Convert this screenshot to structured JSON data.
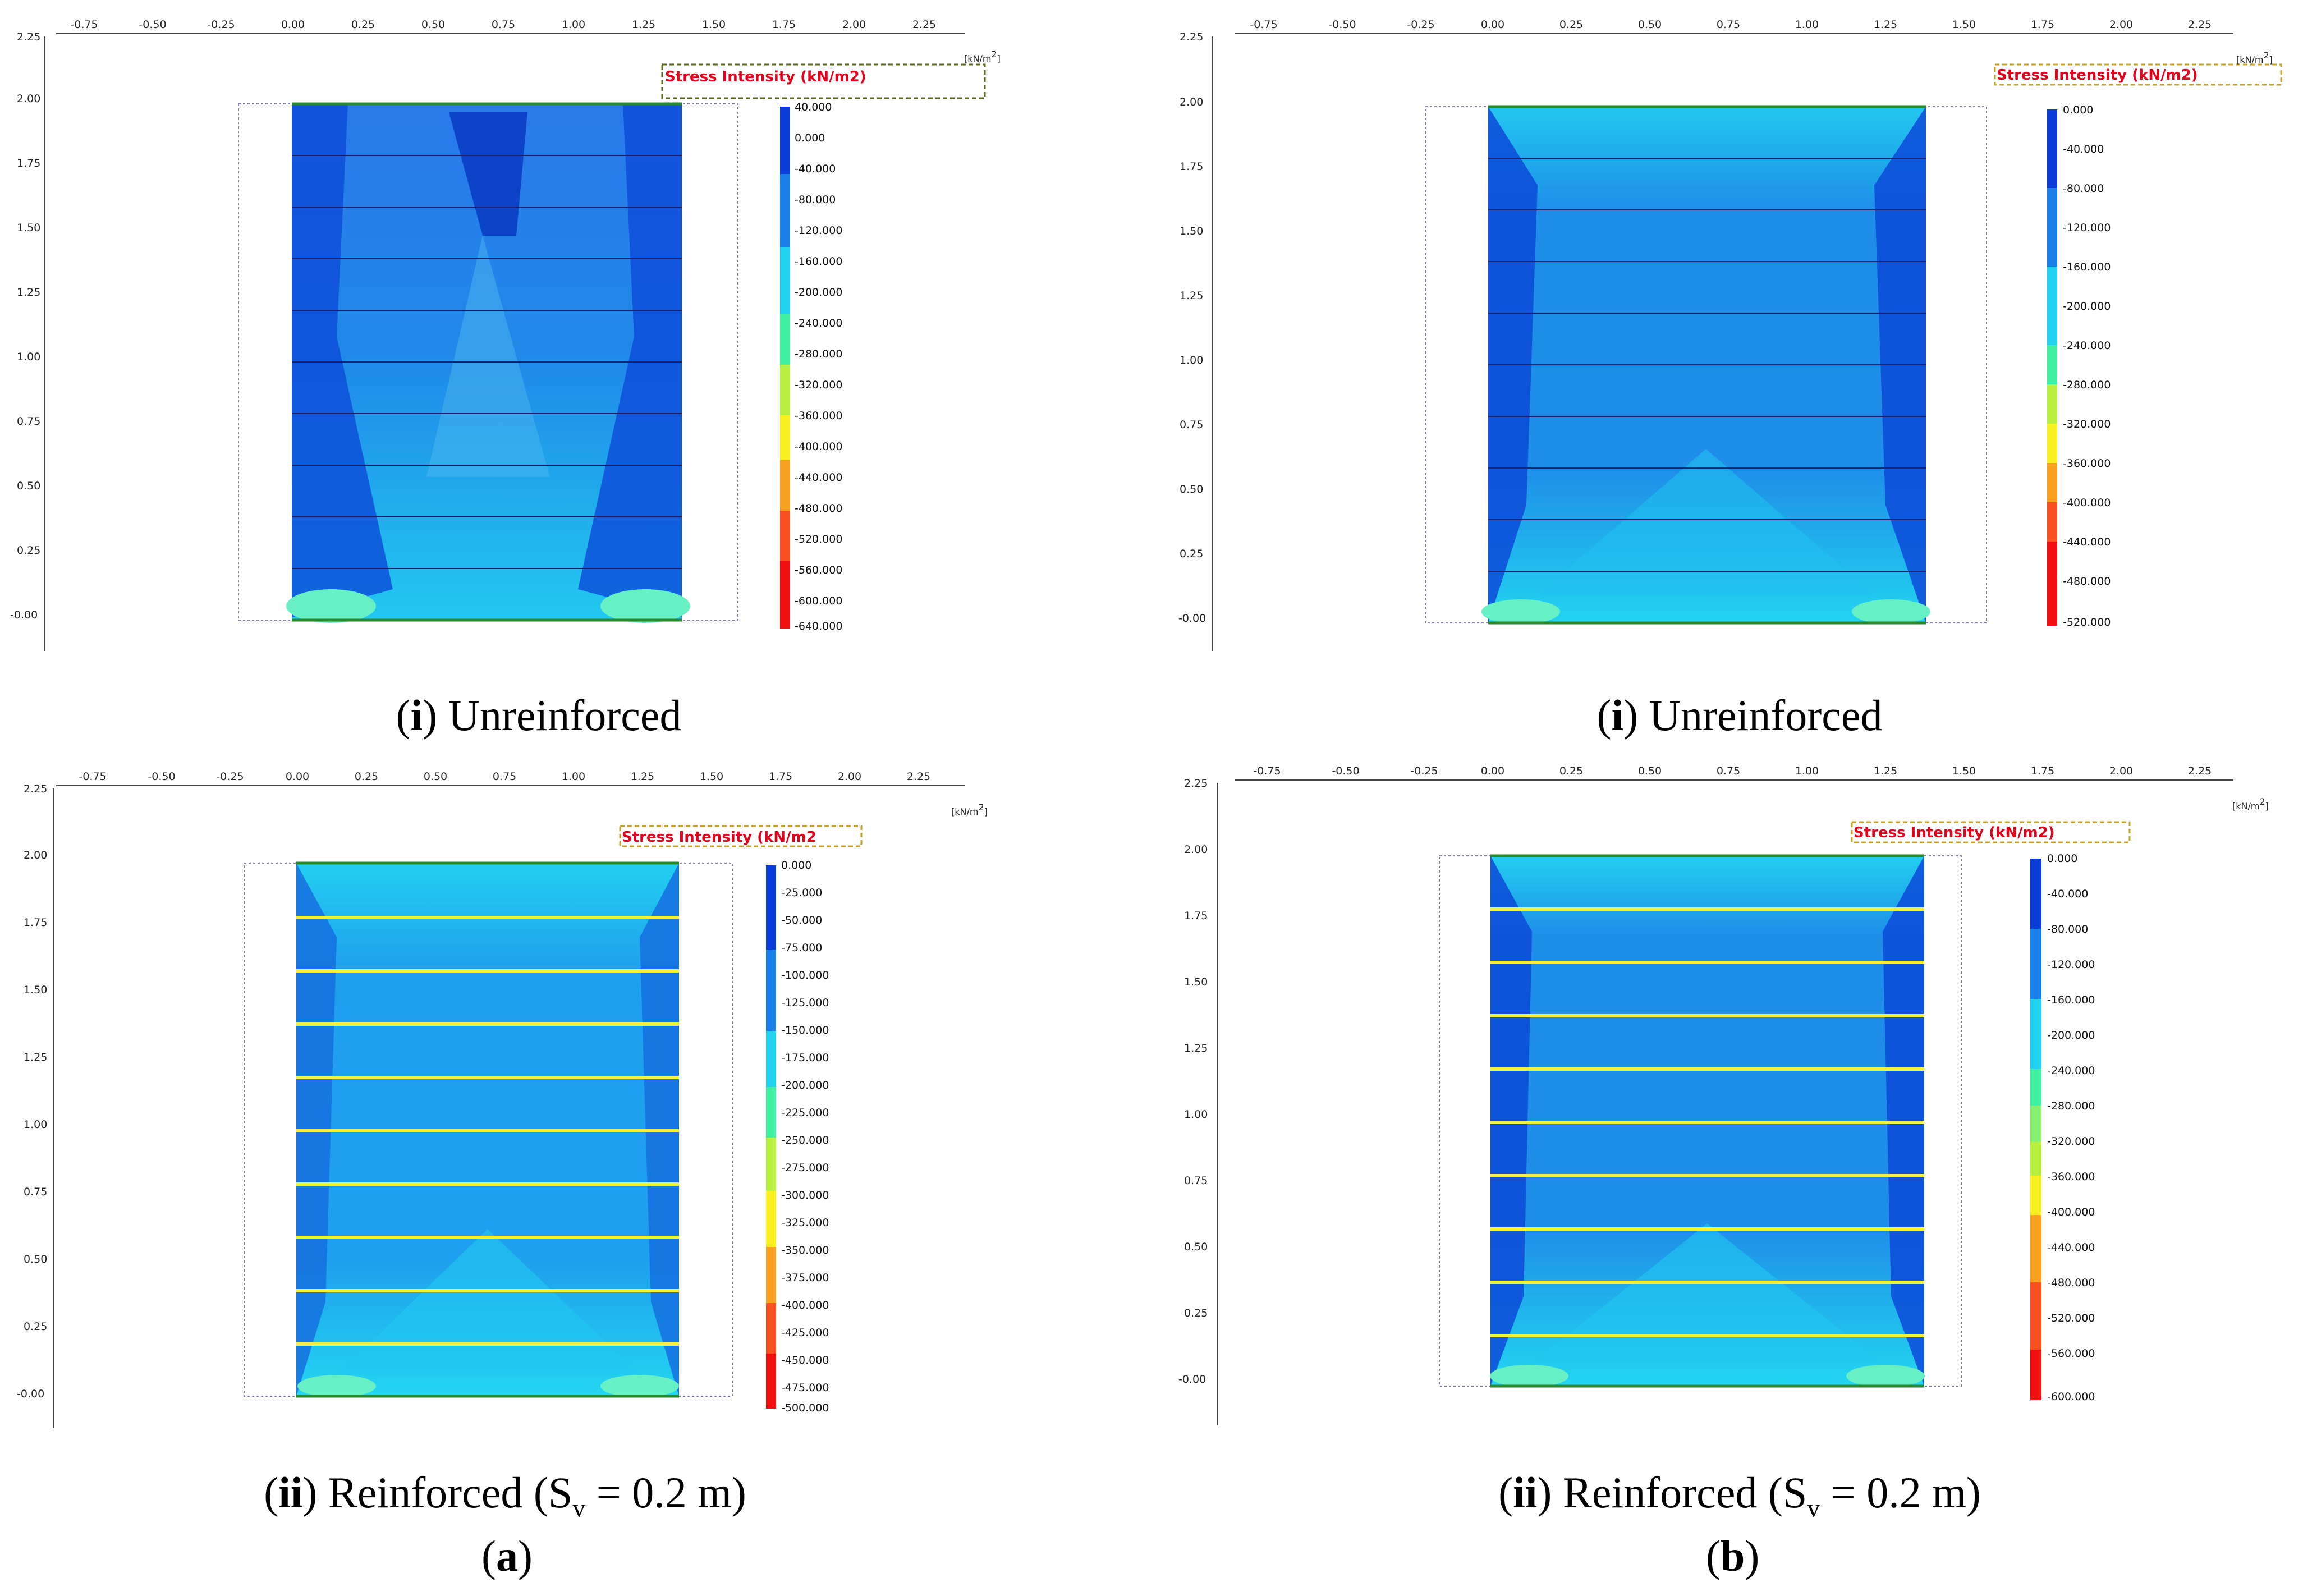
{
  "panels": [
    {
      "id": "a-i",
      "legend_title": "Stress Intensity (kN/m2)",
      "unit": "[kN/m",
      "unit_sup": "2",
      "unit_close": "]",
      "x_ticks": [
        "-0.75",
        "-0.50",
        "-0.25",
        "0.00",
        "0.25",
        "0.50",
        "0.75",
        "1.00",
        "1.25",
        "1.50",
        "1.75",
        "2.00",
        "2.25"
      ],
      "y_ticks": [
        "2.25",
        "2.00",
        "1.75",
        "1.50",
        "1.25",
        "1.00",
        "0.75",
        "0.50",
        "0.25",
        "-0.00"
      ],
      "legend_values": [
        "40.000",
        "0.000",
        "-40.000",
        "-80.000",
        "-120.000",
        "-160.000",
        "-200.000",
        "-240.000",
        "-280.000",
        "-320.000",
        "-360.000",
        "-400.000",
        "-440.000",
        "-480.000",
        "-520.000",
        "-560.000",
        "-600.000",
        "-640.000"
      ],
      "reinforced": false,
      "caption_num": "i",
      "caption_text": "Unreinforced",
      "caption_suffix": ""
    },
    {
      "id": "b-i",
      "legend_title": "Stress Intensity (kN/m2)",
      "unit": "[kN/m",
      "unit_sup": "2",
      "unit_close": "]",
      "x_ticks": [
        "-0.75",
        "-0.50",
        "-0.25",
        "0.00",
        "0.25",
        "0.50",
        "0.75",
        "1.00",
        "1.25",
        "1.50",
        "1.75",
        "2.00",
        "2.25"
      ],
      "y_ticks": [
        "2.25",
        "2.00",
        "1.75",
        "1.50",
        "1.25",
        "1.00",
        "0.75",
        "0.50",
        "0.25",
        "-0.00"
      ],
      "legend_values": [
        "0.000",
        "-40.000",
        "-80.000",
        "-120.000",
        "-160.000",
        "-200.000",
        "-240.000",
        "-280.000",
        "-320.000",
        "-360.000",
        "-400.000",
        "-440.000",
        "-480.000",
        "-520.000"
      ],
      "reinforced": false,
      "caption_num": "i",
      "caption_text": "Unreinforced",
      "caption_suffix": ""
    },
    {
      "id": "a-ii",
      "legend_title": "Stress Intensity (kN/m2",
      "unit": "[kN/m",
      "unit_sup": "2",
      "unit_close": "]",
      "x_ticks": [
        "-0.75",
        "-0.50",
        "-0.25",
        "0.00",
        "0.25",
        "0.50",
        "0.75",
        "1.00",
        "1.25",
        "1.50",
        "1.75",
        "2.00",
        "2.25"
      ],
      "y_ticks": [
        "2.25",
        "2.00",
        "1.75",
        "1.50",
        "1.25",
        "1.00",
        "0.75",
        "0.50",
        "0.25",
        "-0.00"
      ],
      "legend_values": [
        "0.000",
        "-25.000",
        "-50.000",
        "-75.000",
        "-100.000",
        "-125.000",
        "-150.000",
        "-175.000",
        "-200.000",
        "-225.000",
        "-250.000",
        "-275.000",
        "-300.000",
        "-325.000",
        "-350.000",
        "-375.000",
        "-400.000",
        "-425.000",
        "-450.000",
        "-475.000",
        "-500.000"
      ],
      "reinforced": true,
      "caption_num": "ii",
      "caption_text": "Reinforced (S",
      "caption_sub": "v",
      "caption_suffix": " = 0.2 m)"
    },
    {
      "id": "b-ii",
      "legend_title": "Stress Intensity (kN/m2)",
      "unit": "[kN/m",
      "unit_sup": "2",
      "unit_close": "]",
      "x_ticks": [
        "-0.75",
        "-0.50",
        "-0.25",
        "0.00",
        "0.25",
        "0.50",
        "0.75",
        "1.00",
        "1.25",
        "1.50",
        "1.75",
        "2.00",
        "2.25"
      ],
      "y_ticks": [
        "2.25",
        "2.00",
        "1.75",
        "1.50",
        "1.25",
        "1.00",
        "0.75",
        "0.50",
        "0.25",
        "-0.00"
      ],
      "legend_values": [
        "0.000",
        "-40.000",
        "-80.000",
        "-120.000",
        "-160.000",
        "-200.000",
        "-240.000",
        "-280.000",
        "-320.000",
        "-360.000",
        "-400.000",
        "-440.000",
        "-480.000",
        "-520.000",
        "-560.000",
        "-600.000"
      ],
      "reinforced": true,
      "caption_num": "ii",
      "caption_text": "Reinforced (S",
      "caption_sub": "v",
      "caption_suffix": " = 0.2 m)"
    }
  ],
  "figure_labels": {
    "a": "a",
    "b": "b"
  },
  "colors": {
    "deep_blue": "#0a3fd9",
    "mid_blue": "#1a6ee8",
    "light_blue": "#1fa0ee",
    "cyan": "#22d6f0",
    "green_cyan": "#40f0c0",
    "reinforcement": "#f2f23a",
    "title_red": "#e3001b"
  }
}
